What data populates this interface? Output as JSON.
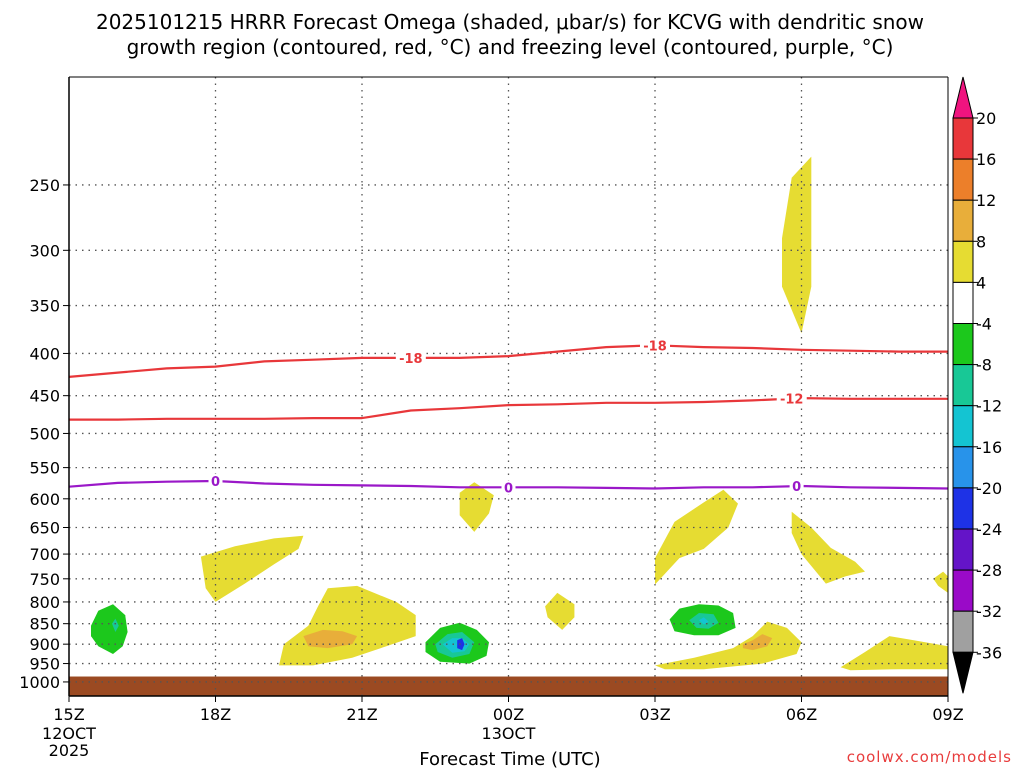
{
  "chart_data": {
    "type": "heatmap",
    "title_lines": [
      "2025101215 HRRR Forecast Omega (shaded, μbar/s) for KCVG with dendritic snow",
      "growth region (contoured, red, °C) and freezing level (contoured, purple, °C)"
    ],
    "xlabel": "Forecast Time (UTC)",
    "ylabel": "",
    "x_range_hours": [
      0,
      18
    ],
    "y_range_hpa": [
      1040,
      185
    ],
    "x_ticks": [
      {
        "hour": 0,
        "label": "15Z",
        "date": "12OCT",
        "year": "2025"
      },
      {
        "hour": 3,
        "label": "18Z"
      },
      {
        "hour": 6,
        "label": "21Z"
      },
      {
        "hour": 9,
        "label": "00Z",
        "date": "13OCT"
      },
      {
        "hour": 12,
        "label": "03Z"
      },
      {
        "hour": 15,
        "label": "06Z"
      },
      {
        "hour": 18,
        "label": "09Z"
      }
    ],
    "y_ticks": [
      250,
      300,
      350,
      400,
      450,
      500,
      550,
      600,
      650,
      700,
      750,
      800,
      850,
      900,
      950,
      1000
    ],
    "grid": true,
    "ground_level_hpa": 985,
    "colorbar": {
      "units": "μbar/s",
      "tick_labels": [
        "20",
        "16",
        "12",
        "8",
        "4",
        "-4",
        "-8",
        "-12",
        "-16",
        "-20",
        "-24",
        "-28",
        "-32",
        "-36"
      ],
      "colors": [
        "#f0147f",
        "#e8373a",
        "#ec7f2a",
        "#e8ae3a",
        "#e6dc32",
        "#ffffff",
        "#1cc81c",
        "#18c896",
        "#14c4d2",
        "#2893ea",
        "#1e32e6",
        "#6414c8",
        "#9a0ac8",
        "#a0a0a0",
        "#000000"
      ]
    },
    "contour_lines": [
      {
        "name": "dendritic-minus18",
        "label": "-18",
        "color": "#e8373a",
        "points": [
          [
            0,
            427
          ],
          [
            1,
            422
          ],
          [
            2,
            417
          ],
          [
            3,
            415
          ],
          [
            4,
            409
          ],
          [
            5,
            407
          ],
          [
            6,
            405
          ],
          [
            7,
            405
          ],
          [
            8,
            405
          ],
          [
            9,
            403
          ],
          [
            10,
            398
          ],
          [
            11,
            393
          ],
          [
            12,
            391
          ],
          [
            13,
            393
          ],
          [
            14,
            394
          ],
          [
            15,
            396
          ],
          [
            16,
            397
          ],
          [
            17,
            398
          ],
          [
            18,
            398
          ]
        ],
        "label_hours": [
          7,
          12
        ]
      },
      {
        "name": "dendritic-minus12",
        "label": "-12",
        "color": "#e8373a",
        "points": [
          [
            0,
            481
          ],
          [
            1,
            481
          ],
          [
            2,
            480
          ],
          [
            3,
            480
          ],
          [
            4,
            480
          ],
          [
            5,
            479
          ],
          [
            6,
            479
          ],
          [
            7,
            469
          ],
          [
            8,
            466
          ],
          [
            9,
            462
          ],
          [
            10,
            461
          ],
          [
            11,
            459
          ],
          [
            12,
            459
          ],
          [
            13,
            458
          ],
          [
            14,
            456
          ],
          [
            15,
            453
          ],
          [
            16,
            454
          ],
          [
            17,
            454
          ],
          [
            18,
            454
          ]
        ],
        "label_hours": [
          14.8
        ]
      },
      {
        "name": "freezing-level",
        "label": "0",
        "color": "#9a18c8",
        "points": [
          [
            0,
            580
          ],
          [
            1,
            574
          ],
          [
            2,
            572
          ],
          [
            3,
            571
          ],
          [
            4,
            575
          ],
          [
            5,
            577
          ],
          [
            6,
            578
          ],
          [
            7,
            579
          ],
          [
            8,
            581
          ],
          [
            9,
            581
          ],
          [
            10,
            581
          ],
          [
            11,
            582
          ],
          [
            12,
            583
          ],
          [
            13,
            581
          ],
          [
            14,
            581
          ],
          [
            15,
            579
          ],
          [
            16,
            581
          ],
          [
            17,
            582
          ],
          [
            18,
            583
          ]
        ],
        "label_hours": [
          3,
          9,
          14.9
        ]
      }
    ],
    "omega_regions": [
      {
        "name": "upper-ascent-4",
        "level": 4,
        "color": "#e6dc32",
        "points": [
          [
            14.6,
            290
          ],
          [
            14.8,
            245
          ],
          [
            15.2,
            231
          ],
          [
            15.2,
            290
          ],
          [
            15.2,
            332
          ],
          [
            15.0,
            378
          ],
          [
            14.6,
            332
          ]
        ]
      },
      {
        "name": "mid-ascent-a",
        "level": 4,
        "color": "#e6dc32",
        "points": [
          [
            2.7,
            705
          ],
          [
            3.4,
            685
          ],
          [
            4.2,
            670
          ],
          [
            4.8,
            665
          ],
          [
            4.7,
            690
          ],
          [
            4.2,
            720
          ],
          [
            3.6,
            760
          ],
          [
            3.0,
            800
          ],
          [
            2.8,
            770
          ]
        ]
      },
      {
        "name": "mid-ascent-b",
        "level": 4,
        "color": "#e6dc32",
        "points": [
          [
            8.0,
            590
          ],
          [
            8.3,
            573
          ],
          [
            8.7,
            594
          ],
          [
            8.6,
            625
          ],
          [
            8.3,
            658
          ],
          [
            8.0,
            628
          ]
        ]
      },
      {
        "name": "mid-ascent-c",
        "level": 4,
        "color": "#e6dc32",
        "points": [
          [
            12.0,
            708
          ],
          [
            12.4,
            640
          ],
          [
            13.0,
            606
          ],
          [
            13.4,
            585
          ],
          [
            13.7,
            608
          ],
          [
            13.5,
            650
          ],
          [
            13.0,
            690
          ],
          [
            12.5,
            708
          ],
          [
            12.0,
            762
          ]
        ]
      },
      {
        "name": "mid-ascent-d",
        "level": 4,
        "color": "#e6dc32",
        "points": [
          [
            14.8,
            622
          ],
          [
            15.2,
            650
          ],
          [
            15.6,
            688
          ],
          [
            16.1,
            715
          ],
          [
            16.3,
            735
          ],
          [
            15.9,
            745
          ],
          [
            15.5,
            760
          ],
          [
            15.0,
            700
          ],
          [
            14.8,
            660
          ]
        ]
      },
      {
        "name": "mid-ascent-e",
        "level": 4,
        "color": "#e6dc32",
        "points": [
          [
            17.7,
            750
          ],
          [
            17.9,
            735
          ],
          [
            18.0,
            745
          ],
          [
            18.0,
            780
          ],
          [
            17.8,
            765
          ]
        ]
      },
      {
        "name": "low-ascent-a",
        "level": 4,
        "color": "#e6dc32",
        "points": [
          [
            4.4,
            900
          ],
          [
            4.9,
            855
          ],
          [
            5.1,
            810
          ],
          [
            5.3,
            770
          ],
          [
            5.9,
            765
          ],
          [
            6.7,
            800
          ],
          [
            7.1,
            830
          ],
          [
            7.1,
            880
          ],
          [
            6.5,
            905
          ],
          [
            5.8,
            935
          ],
          [
            5.0,
            955
          ],
          [
            4.3,
            955
          ]
        ]
      },
      {
        "name": "low-ascent-a-8",
        "level": 8,
        "color": "#e8ae3a",
        "points": [
          [
            4.8,
            880
          ],
          [
            5.2,
            865
          ],
          [
            5.6,
            868
          ],
          [
            5.9,
            880
          ],
          [
            5.8,
            900
          ],
          [
            5.3,
            910
          ],
          [
            4.9,
            905
          ]
        ]
      },
      {
        "name": "low-ascent-b",
        "level": 4,
        "color": "#e6dc32",
        "points": [
          [
            9.75,
            810
          ],
          [
            10.0,
            780
          ],
          [
            10.35,
            805
          ],
          [
            10.35,
            835
          ],
          [
            10.1,
            865
          ],
          [
            9.8,
            835
          ]
        ]
      },
      {
        "name": "low-ascent-c",
        "level": 4,
        "color": "#e6dc32",
        "points": [
          [
            12.0,
            955
          ],
          [
            12.8,
            935
          ],
          [
            13.6,
            910
          ],
          [
            14.0,
            880
          ],
          [
            14.3,
            845
          ],
          [
            14.7,
            860
          ],
          [
            15.0,
            895
          ],
          [
            14.9,
            925
          ],
          [
            14.2,
            950
          ],
          [
            13.0,
            965
          ],
          [
            12.2,
            965
          ]
        ]
      },
      {
        "name": "low-ascent-c-8",
        "level": 8,
        "color": "#e8ae3a",
        "points": [
          [
            13.8,
            900
          ],
          [
            14.0,
            890
          ],
          [
            14.2,
            875
          ],
          [
            14.4,
            885
          ],
          [
            14.3,
            905
          ],
          [
            14.0,
            915
          ],
          [
            13.8,
            910
          ]
        ]
      },
      {
        "name": "low-ascent-d",
        "level": 4,
        "color": "#e6dc32",
        "points": [
          [
            15.8,
            960
          ],
          [
            16.3,
            920
          ],
          [
            16.8,
            880
          ],
          [
            17.3,
            890
          ],
          [
            18.0,
            905
          ],
          [
            18.0,
            965
          ],
          [
            17.0,
            965
          ],
          [
            16.0,
            968
          ]
        ]
      },
      {
        "name": "subsidence-a",
        "level": -4,
        "color": "#1cc81c",
        "points": [
          [
            0.45,
            855
          ],
          [
            0.6,
            820
          ],
          [
            0.9,
            805
          ],
          [
            1.15,
            830
          ],
          [
            1.2,
            870
          ],
          [
            1.1,
            905
          ],
          [
            0.9,
            925
          ],
          [
            0.6,
            905
          ],
          [
            0.45,
            880
          ]
        ]
      },
      {
        "name": "subsidence-a-8",
        "level": -8,
        "color": "#18c896",
        "points": [
          [
            0.88,
            850
          ],
          [
            0.95,
            838
          ],
          [
            1.02,
            855
          ],
          [
            0.95,
            870
          ]
        ]
      },
      {
        "name": "subsidence-b",
        "level": -4,
        "color": "#1cc81c",
        "points": [
          [
            7.3,
            895
          ],
          [
            7.6,
            860
          ],
          [
            8.0,
            848
          ],
          [
            8.35,
            865
          ],
          [
            8.6,
            895
          ],
          [
            8.55,
            930
          ],
          [
            8.2,
            950
          ],
          [
            7.6,
            945
          ],
          [
            7.3,
            920
          ]
        ]
      },
      {
        "name": "subsidence-b-8",
        "level": -8,
        "color": "#18c896",
        "points": [
          [
            7.5,
            900
          ],
          [
            7.75,
            875
          ],
          [
            8.05,
            870
          ],
          [
            8.3,
            895
          ],
          [
            8.2,
            925
          ],
          [
            7.85,
            935
          ],
          [
            7.55,
            920
          ]
        ]
      },
      {
        "name": "subsidence-b-12",
        "level": -12,
        "color": "#14c4d2",
        "points": [
          [
            7.65,
            900
          ],
          [
            7.85,
            885
          ],
          [
            8.05,
            885
          ],
          [
            8.2,
            900
          ],
          [
            8.1,
            918
          ],
          [
            7.85,
            922
          ]
        ]
      },
      {
        "name": "subsidence-b-20",
        "level": -20,
        "color": "#1e32e6",
        "points": [
          [
            7.95,
            890
          ],
          [
            8.05,
            885
          ],
          [
            8.1,
            900
          ],
          [
            8.05,
            915
          ],
          [
            7.95,
            910
          ]
        ]
      },
      {
        "name": "subsidence-c",
        "level": -4,
        "color": "#1cc81c",
        "points": [
          [
            12.3,
            840
          ],
          [
            12.5,
            815
          ],
          [
            12.9,
            805
          ],
          [
            13.3,
            808
          ],
          [
            13.6,
            825
          ],
          [
            13.65,
            860
          ],
          [
            13.3,
            878
          ],
          [
            12.8,
            878
          ],
          [
            12.4,
            868
          ]
        ]
      },
      {
        "name": "subsidence-c-8",
        "level": -8,
        "color": "#18c896",
        "points": [
          [
            12.7,
            842
          ],
          [
            12.9,
            825
          ],
          [
            13.2,
            828
          ],
          [
            13.3,
            848
          ],
          [
            13.1,
            862
          ],
          [
            12.85,
            860
          ]
        ]
      },
      {
        "name": "subsidence-c-12",
        "level": -12,
        "color": "#14c4d2",
        "points": [
          [
            12.9,
            842
          ],
          [
            13.0,
            835
          ],
          [
            13.1,
            845
          ],
          [
            13.0,
            852
          ]
        ]
      }
    ]
  },
  "watermark": "coolwx.com/models"
}
